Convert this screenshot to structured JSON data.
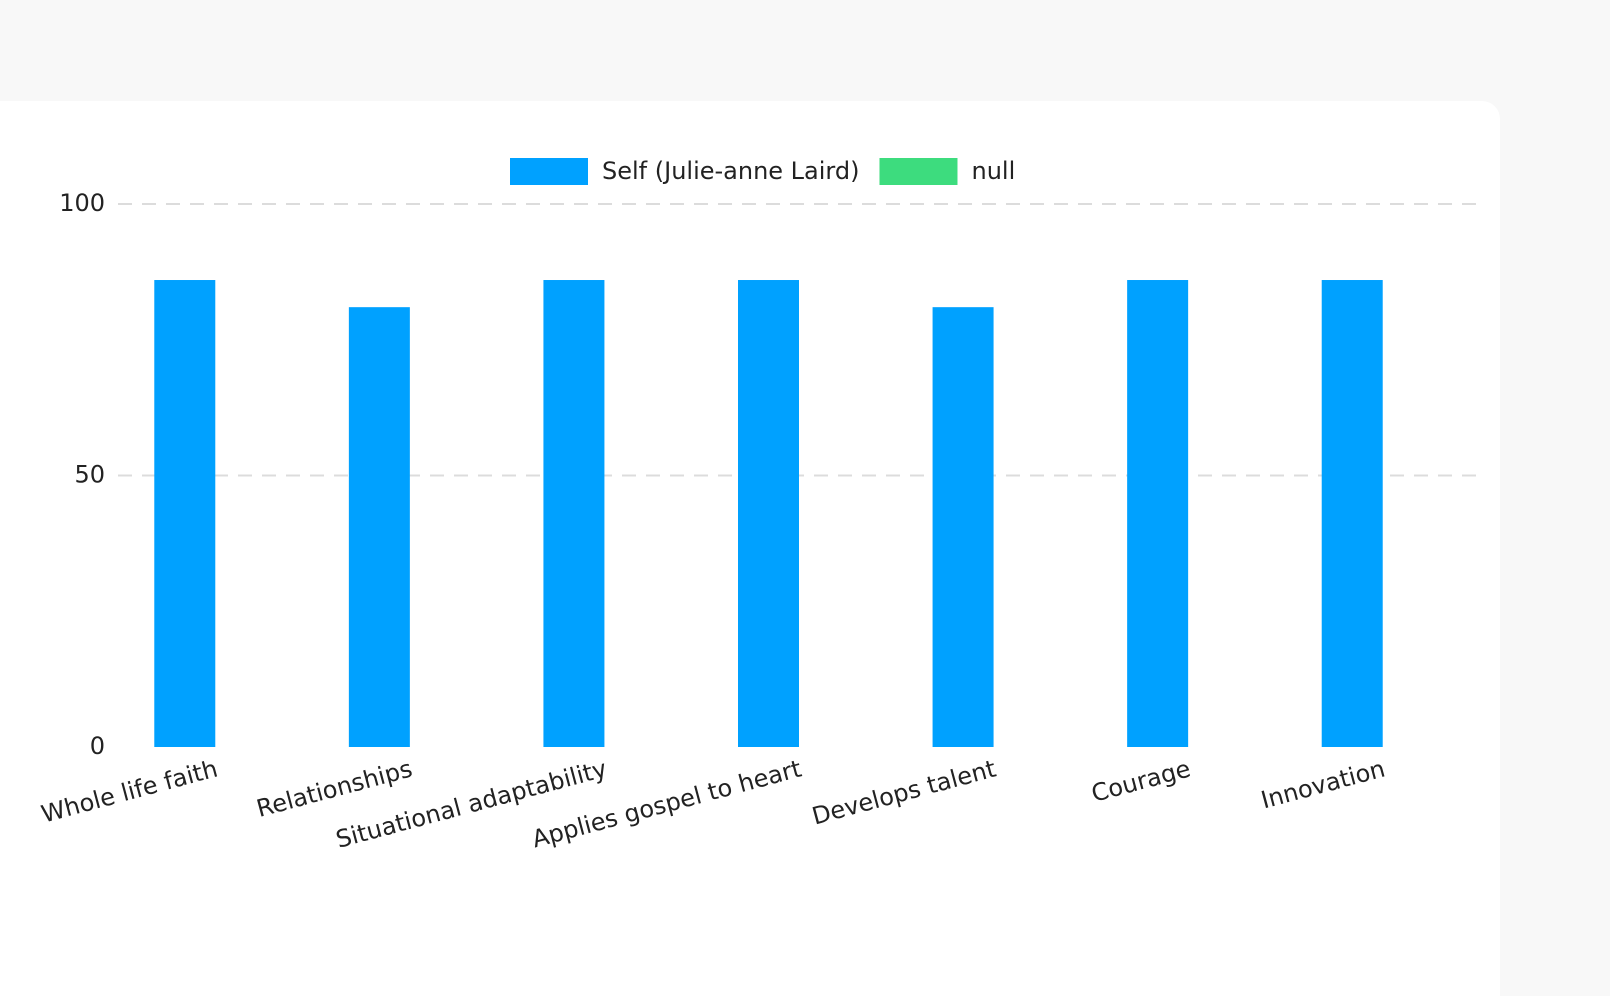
{
  "chart_data": {
    "type": "bar",
    "categories": [
      "Whole life faith",
      "Relationships",
      "Situational adaptability",
      "Applies gospel to heart",
      "Develops talent",
      "Courage",
      "Innovation"
    ],
    "series": [
      {
        "name": "Self (Julie-anne Laird)",
        "color": "#00a1ff",
        "values": [
          86,
          81,
          86,
          86,
          81,
          86,
          86
        ]
      },
      {
        "name": "null",
        "color": "#3ddc7e",
        "values": [
          null,
          null,
          null,
          null,
          null,
          null,
          null
        ]
      }
    ],
    "ylim": [
      0,
      100
    ],
    "yticks": [
      0,
      50,
      100
    ],
    "grid": true,
    "legend": "top"
  }
}
